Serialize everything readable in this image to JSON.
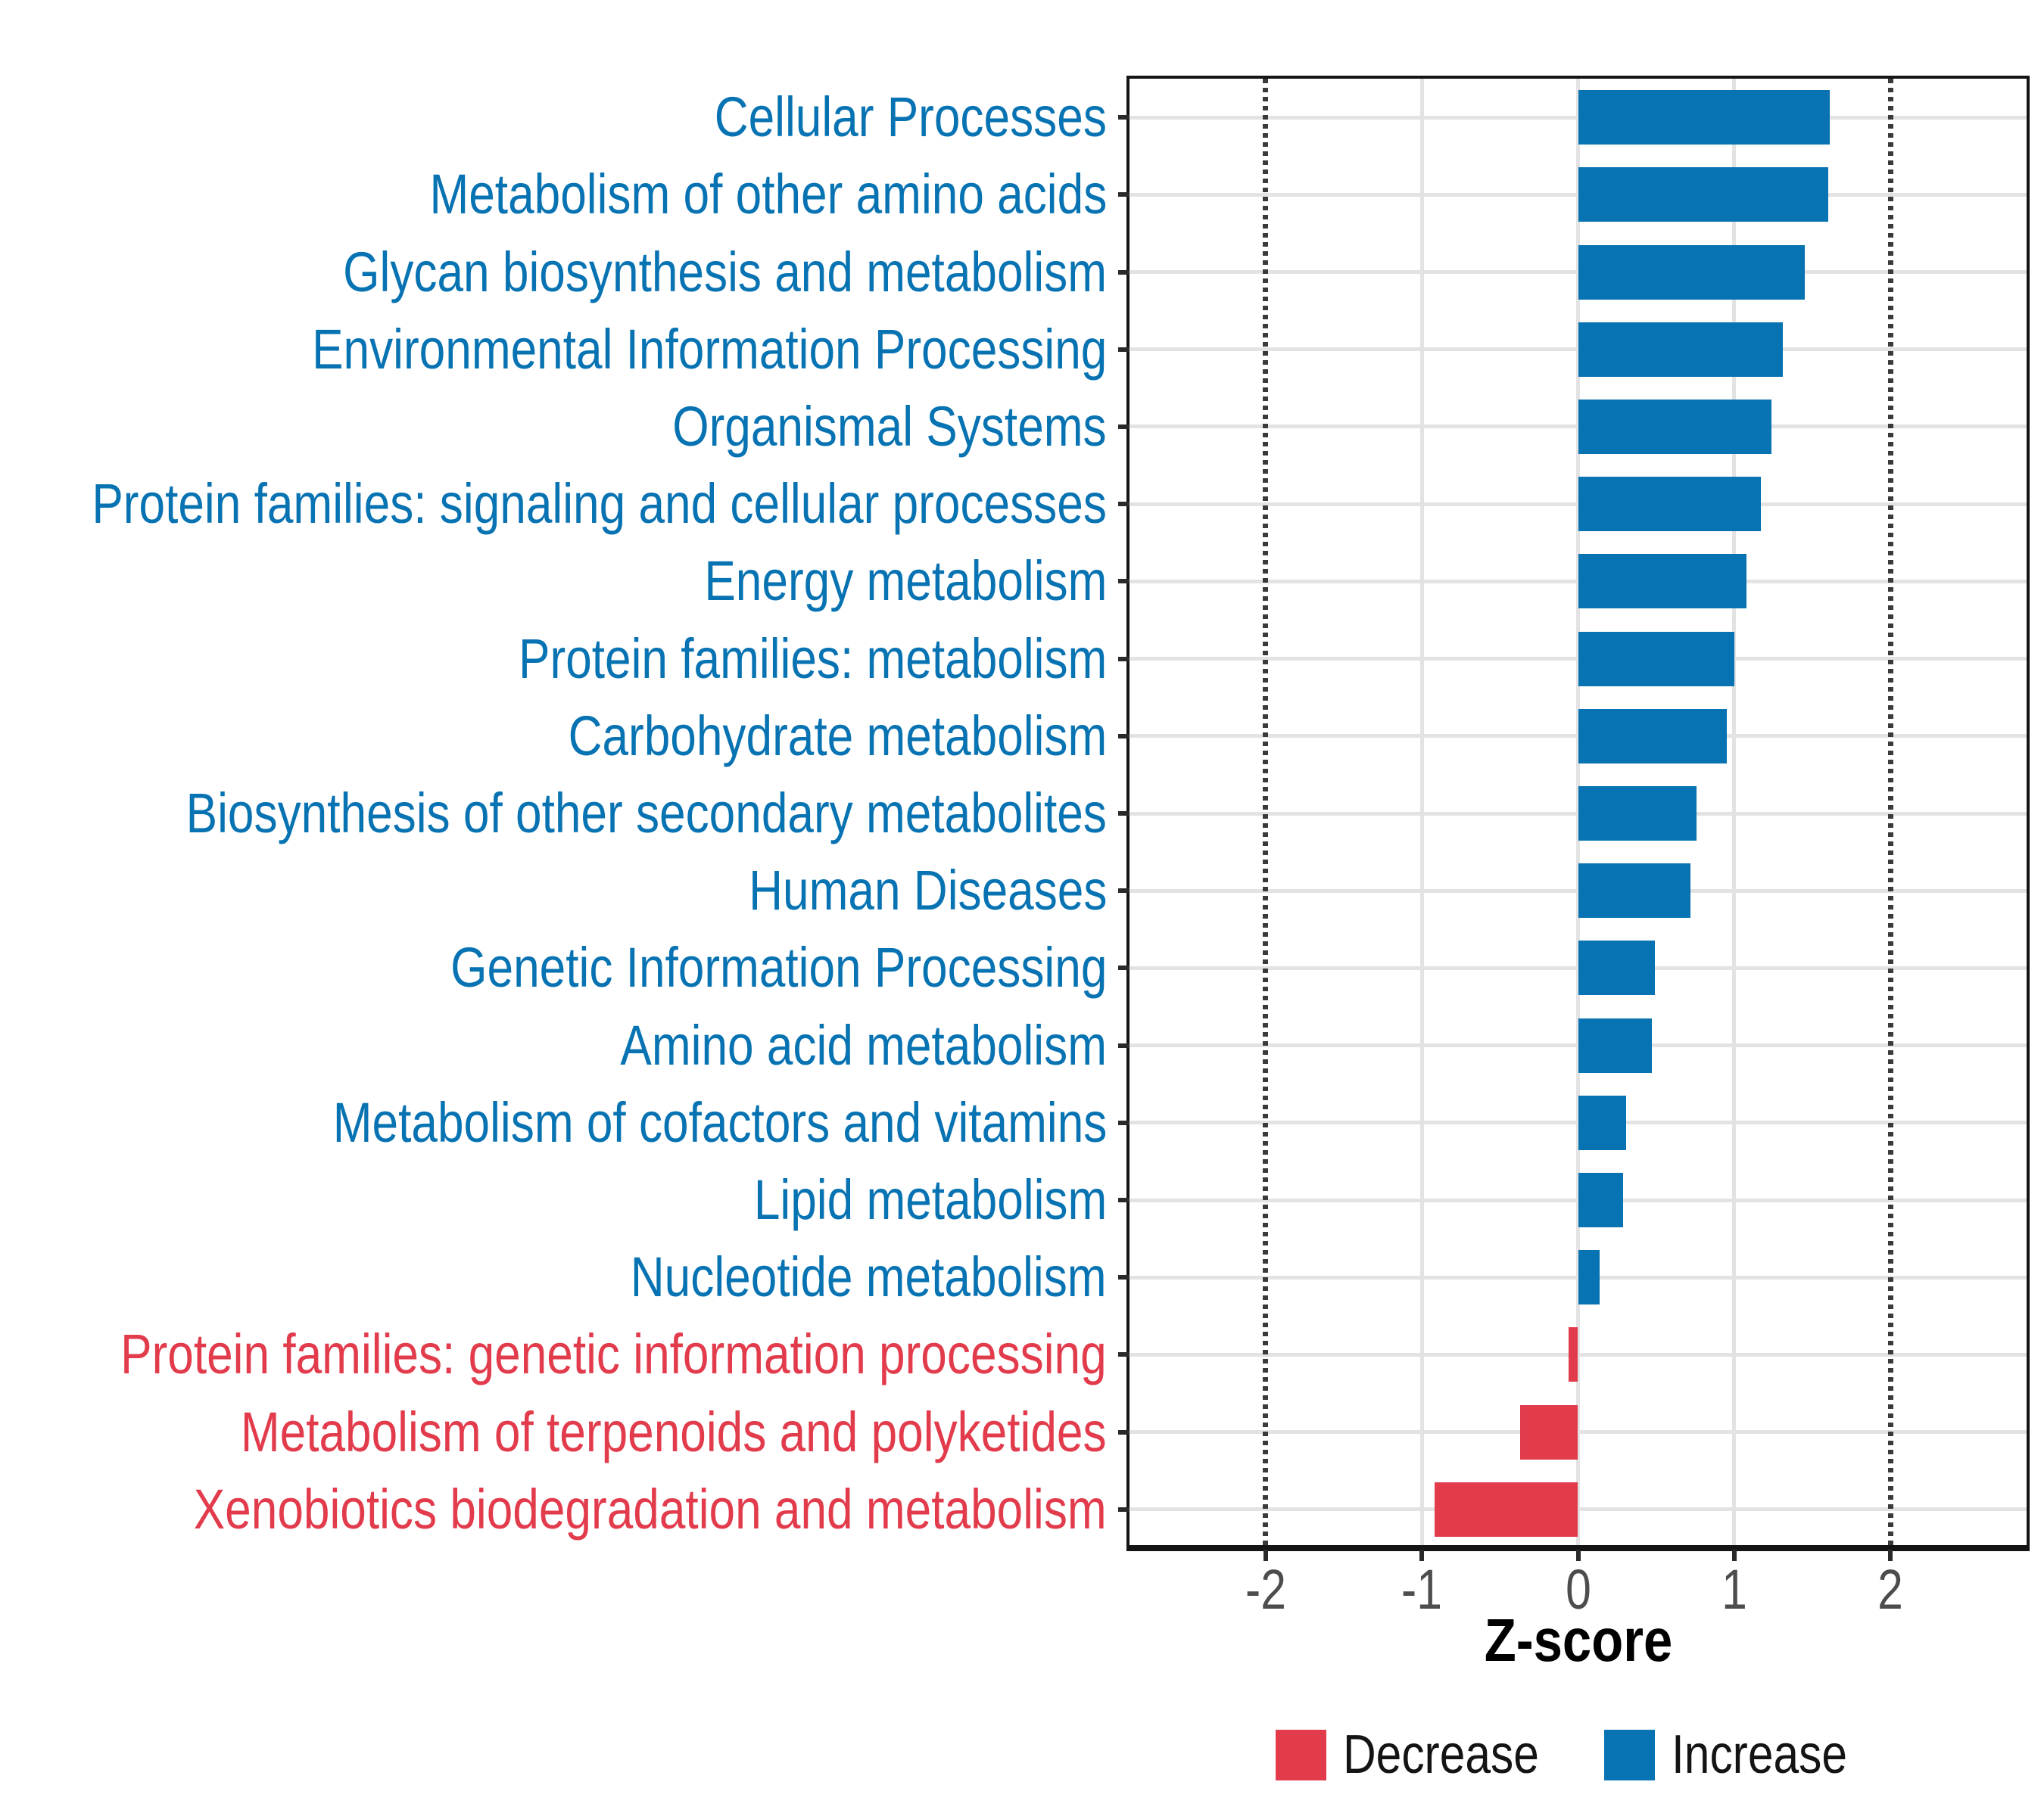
{
  "chart_data": {
    "type": "bar",
    "orientation": "horizontal",
    "xlabel": "Z-score",
    "categories": [
      "Cellular Processes",
      "Metabolism of other amino acids",
      "Glycan biosynthesis and metabolism",
      "Environmental Information Processing",
      "Organismal Systems",
      "Protein families: signaling and cellular processes",
      "Energy metabolism",
      "Protein families: metabolism",
      "Carbohydrate metabolism",
      "Biosynthesis of other secondary metabolites",
      "Human Diseases",
      "Genetic Information Processing",
      "Amino acid metabolism",
      "Metabolism of cofactors and vitamins",
      "Lipid metabolism",
      "Nucleotide metabolism",
      "Protein families: genetic information processing",
      "Metabolism of terpenoids and polyketides",
      "Xenobiotics biodegradation and metabolism"
    ],
    "values": [
      1.61,
      1.6,
      1.45,
      1.31,
      1.24,
      1.17,
      1.08,
      1.0,
      0.95,
      0.76,
      0.72,
      0.49,
      0.47,
      0.31,
      0.29,
      0.14,
      -0.06,
      -0.37,
      -0.92
    ],
    "directions": [
      "Increase",
      "Increase",
      "Increase",
      "Increase",
      "Increase",
      "Increase",
      "Increase",
      "Increase",
      "Increase",
      "Increase",
      "Increase",
      "Increase",
      "Increase",
      "Increase",
      "Increase",
      "Increase",
      "Decrease",
      "Decrease",
      "Decrease"
    ],
    "xlim": [
      -2.87,
      2.87
    ],
    "x_ticks": [
      -2,
      -1,
      0,
      1,
      2
    ],
    "solid_gridlines_x": [
      -1,
      0,
      1
    ],
    "dotted_guides_x": [
      -2,
      2
    ],
    "grid": "major-only",
    "legend_position": "bottom"
  },
  "legend": {
    "items": [
      {
        "key": "decrease",
        "label": "Decrease",
        "color": "#E23B4C"
      },
      {
        "key": "increase",
        "label": "Increase",
        "color": "#0873B2"
      }
    ]
  },
  "colors": {
    "increase": "#0873B2",
    "decrease": "#E23B4C",
    "gridline": "#E3E3E3",
    "dotted_guide": "#3A3A3A",
    "axis_text": "#4D4D4D",
    "axis_line": "#141414"
  }
}
